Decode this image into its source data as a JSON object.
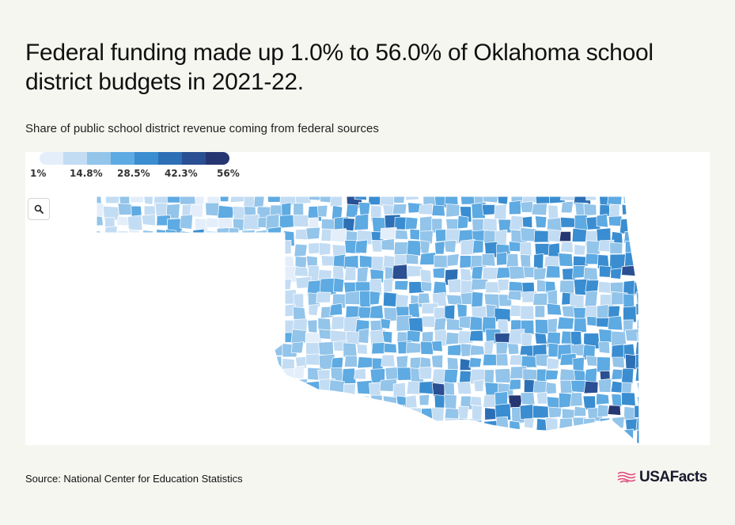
{
  "title": "Federal funding made up 1.0% to 56.0% of Oklahoma school district budgets in 2021-22.",
  "subtitle": "Share of public school district revenue coming from federal sources",
  "legend": {
    "colors": [
      "#e3eefa",
      "#c2dcf3",
      "#93c4ea",
      "#5eaae2",
      "#3a8dd0",
      "#2d6fb5",
      "#2a4f92",
      "#263672"
    ],
    "labels": [
      "1%",
      "14.8%",
      "28.5%",
      "42.3%",
      "56%"
    ]
  },
  "zoom_icon": "search-icon",
  "source": "Source: National Center for Education Statistics",
  "brand": {
    "name": "USAFacts",
    "icon": "flag-icon",
    "icon_color": "#e0457b"
  }
}
